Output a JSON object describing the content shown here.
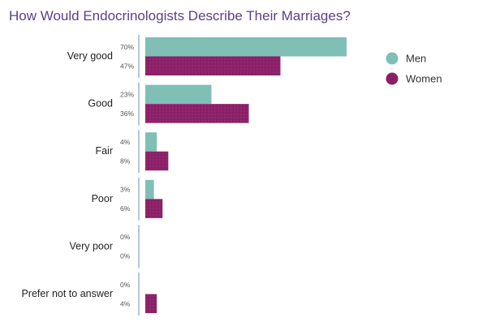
{
  "chart_data": {
    "type": "bar",
    "orientation": "horizontal",
    "title": "How Would Endocrinologists Describe Their Marriages?",
    "categories": [
      "Very good",
      "Good",
      "Fair",
      "Poor",
      "Very poor",
      "Prefer not to answer"
    ],
    "series": [
      {
        "name": "Men",
        "values": [
          70,
          23,
          4,
          3,
          0,
          0
        ],
        "labels": [
          "70%",
          "23%",
          "4%",
          "3%",
          "0%",
          "0%"
        ]
      },
      {
        "name": "Women",
        "values": [
          47,
          36,
          8,
          6,
          0,
          4
        ],
        "labels": [
          "47%",
          "36%",
          "8%",
          "6%",
          "0%",
          "4%"
        ]
      }
    ],
    "xlim": [
      0,
      70
    ],
    "grid": false,
    "legend_position": "right",
    "colors": {
      "Men": "#7fbfb6",
      "Women": "#8b1f67",
      "title": "#5b3f8c"
    }
  }
}
